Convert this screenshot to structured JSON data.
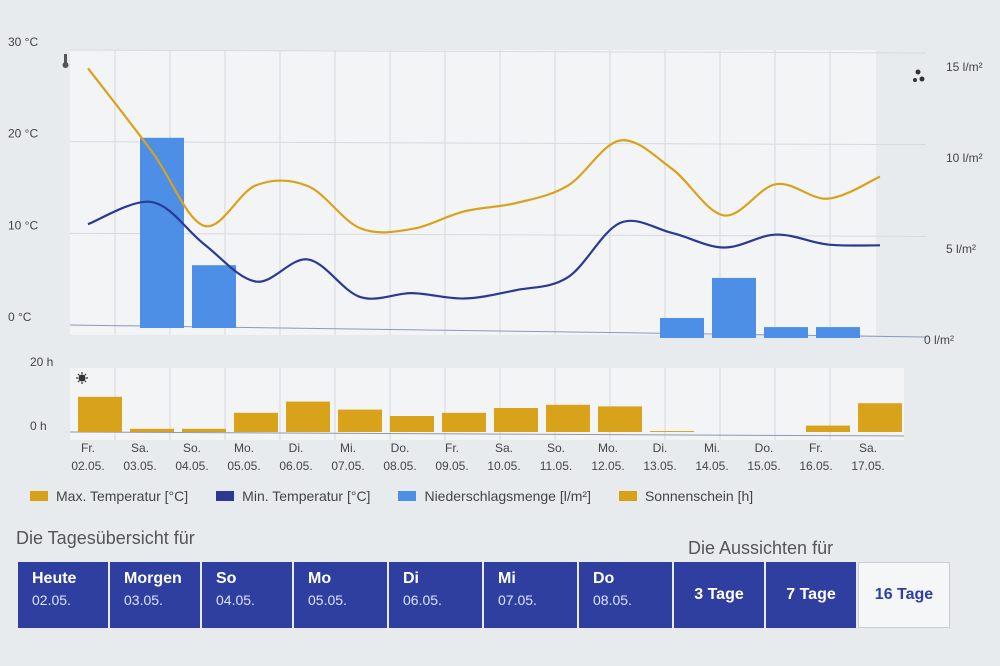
{
  "chart_data": {
    "type": "line",
    "days": [
      {
        "wd": "Fr.",
        "date": "02.05."
      },
      {
        "wd": "Sa.",
        "date": "03.05."
      },
      {
        "wd": "So.",
        "date": "04.05."
      },
      {
        "wd": "Mo.",
        "date": "05.05."
      },
      {
        "wd": "Di.",
        "date": "06.05."
      },
      {
        "wd": "Mi.",
        "date": "07.05."
      },
      {
        "wd": "Do.",
        "date": "08.05."
      },
      {
        "wd": "Fr.",
        "date": "09.05."
      },
      {
        "wd": "Sa.",
        "date": "10.05."
      },
      {
        "wd": "So.",
        "date": "11.05."
      },
      {
        "wd": "Mo.",
        "date": "12.05."
      },
      {
        "wd": "Di.",
        "date": "13.05."
      },
      {
        "wd": "Mi.",
        "date": "14.05."
      },
      {
        "wd": "Do.",
        "date": "15.05."
      },
      {
        "wd": "Fr.",
        "date": "16.05."
      },
      {
        "wd": "Sa.",
        "date": "17.05."
      }
    ],
    "temp_axis": {
      "ticks": [
        "30 °C",
        "20 °C",
        "10 °C",
        "0 °C"
      ],
      "values": [
        30,
        20,
        10,
        0
      ]
    },
    "precip_axis": {
      "ticks": [
        "15 l/m²",
        "10 l/m²",
        "5 l/m²",
        "0 l/m²"
      ],
      "values": [
        15,
        10,
        5,
        0
      ]
    },
    "sun_axis": {
      "ticks": [
        "20 h",
        "0 h"
      ],
      "values": [
        20,
        0
      ]
    },
    "series": [
      {
        "name": "Max. Temperatur [°C]",
        "color": "#d9a21b",
        "kind": "line",
        "axis": "temp",
        "values": [
          28,
          19,
          11,
          15.5,
          15.5,
          11,
          11,
          13,
          14,
          16,
          21,
          18,
          13,
          16.5,
          15,
          17.5
        ]
      },
      {
        "name": "Min. Temperatur [°C]",
        "color": "#2a3a94",
        "kind": "line",
        "axis": "temp",
        "values": [
          11,
          13.5,
          9,
          5,
          7.5,
          3.5,
          4,
          3.5,
          4.5,
          6,
          12,
          11,
          9.5,
          11,
          10,
          10
        ]
      },
      {
        "name": "Niederschlagsmenge [l/m²]",
        "color": "#4d8fe6",
        "kind": "bar",
        "axis": "precip",
        "values": [
          0,
          11,
          4,
          0,
          0,
          0,
          0,
          0,
          0,
          0,
          0,
          1.1,
          3.3,
          0.6,
          0.6,
          0
        ]
      },
      {
        "name": "Sonnenschein [h]",
        "color": "#d9a21b",
        "kind": "bar",
        "axis": "sun",
        "values": [
          11,
          1,
          1,
          6,
          9.5,
          7,
          5,
          6,
          7.5,
          8.5,
          8,
          0.3,
          0,
          0,
          2,
          9
        ]
      }
    ]
  },
  "labels": {
    "day_overview": "Die Tagesübersicht für",
    "outlook": "Die Aussichten für"
  },
  "nav": {
    "days": [
      {
        "name": "Heute",
        "date": "02.05."
      },
      {
        "name": "Morgen",
        "date": "03.05."
      },
      {
        "name": "So",
        "date": "04.05."
      },
      {
        "name": "Mo",
        "date": "05.05."
      },
      {
        "name": "Di",
        "date": "06.05."
      },
      {
        "name": "Mi",
        "date": "07.05."
      },
      {
        "name": "Do",
        "date": "08.05."
      }
    ],
    "ranges": [
      "3 Tage",
      "7 Tage",
      "16 Tage"
    ]
  }
}
